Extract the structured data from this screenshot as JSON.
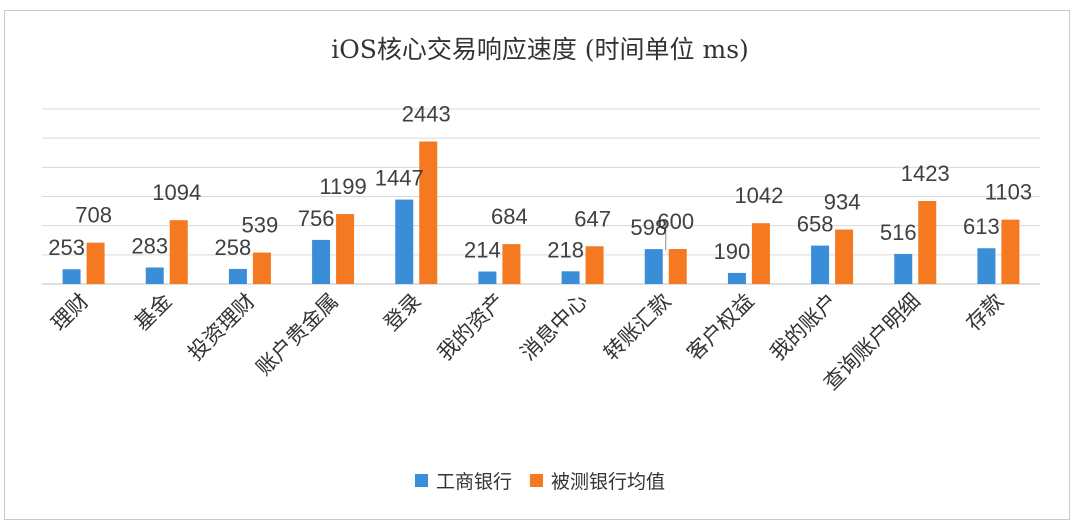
{
  "chart_data": {
    "type": "bar",
    "title": "iOS核心交易响应速度 (时间单位 ms)",
    "xlabel": "",
    "ylabel": "",
    "ylim": [
      0,
      3000
    ],
    "grid": true,
    "legend_position": "bottom",
    "categories": [
      "理财",
      "基金",
      "投资理财",
      "账户贵金属",
      "登录",
      "我的资产",
      "消息中心",
      "转账汇款",
      "客户权益",
      "我的账户",
      "查询账户明细",
      "存款"
    ],
    "series": [
      {
        "name": "工商银行",
        "color": "#3a8ed8",
        "values": [
          253,
          283,
          258,
          756,
          1447,
          214,
          218,
          598,
          190,
          658,
          516,
          613
        ]
      },
      {
        "name": "被测银行均值",
        "color": "#f47920",
        "values": [
          708,
          1094,
          539,
          1199,
          2443,
          684,
          647,
          600,
          1042,
          934,
          1423,
          1103
        ]
      }
    ]
  }
}
